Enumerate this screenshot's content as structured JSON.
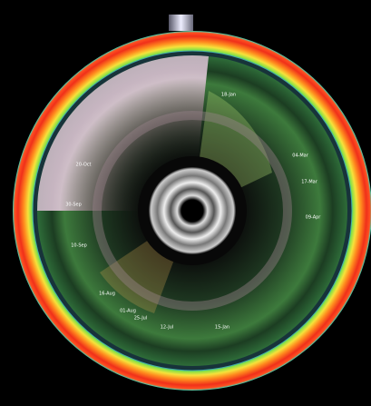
{
  "labels": [
    "18-Jan",
    "04-Mar",
    "17-Mar",
    "09-Apr",
    "20-Oct",
    "30-Sep",
    "10-Sep",
    "16-Aug",
    "01-Aug",
    "25-Jul",
    "12-Jul",
    "15-Jan"
  ]
}
